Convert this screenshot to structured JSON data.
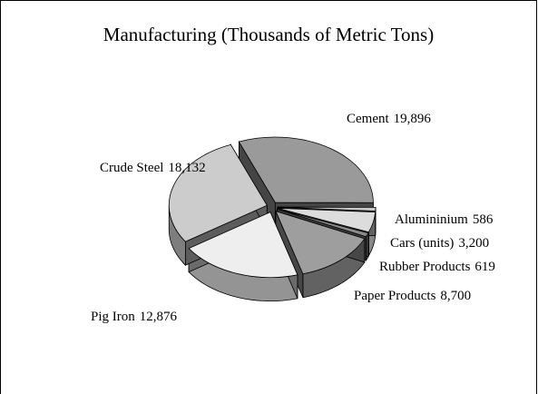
{
  "chart_data": {
    "type": "pie",
    "title": "Manufacturing (Thousands of Metric Tons)",
    "categories": [
      "Cement",
      "Alumininium",
      "Cars (units)",
      "Rubber Products",
      "Paper Products",
      "Pig Iron",
      "Crude Steel"
    ],
    "values": [
      19896,
      586,
      3200,
      619,
      8700,
      12876,
      18132
    ],
    "value_labels": [
      "19,896",
      "586",
      "3,200",
      "619",
      "8,700",
      "12,876",
      "18,132"
    ],
    "colors": [
      "#9a9a9a",
      "#c8c8c8",
      "#dcdcdc",
      "#8a8a8a",
      "#9e9e9e",
      "#eeeeee",
      "#cccccc"
    ]
  }
}
